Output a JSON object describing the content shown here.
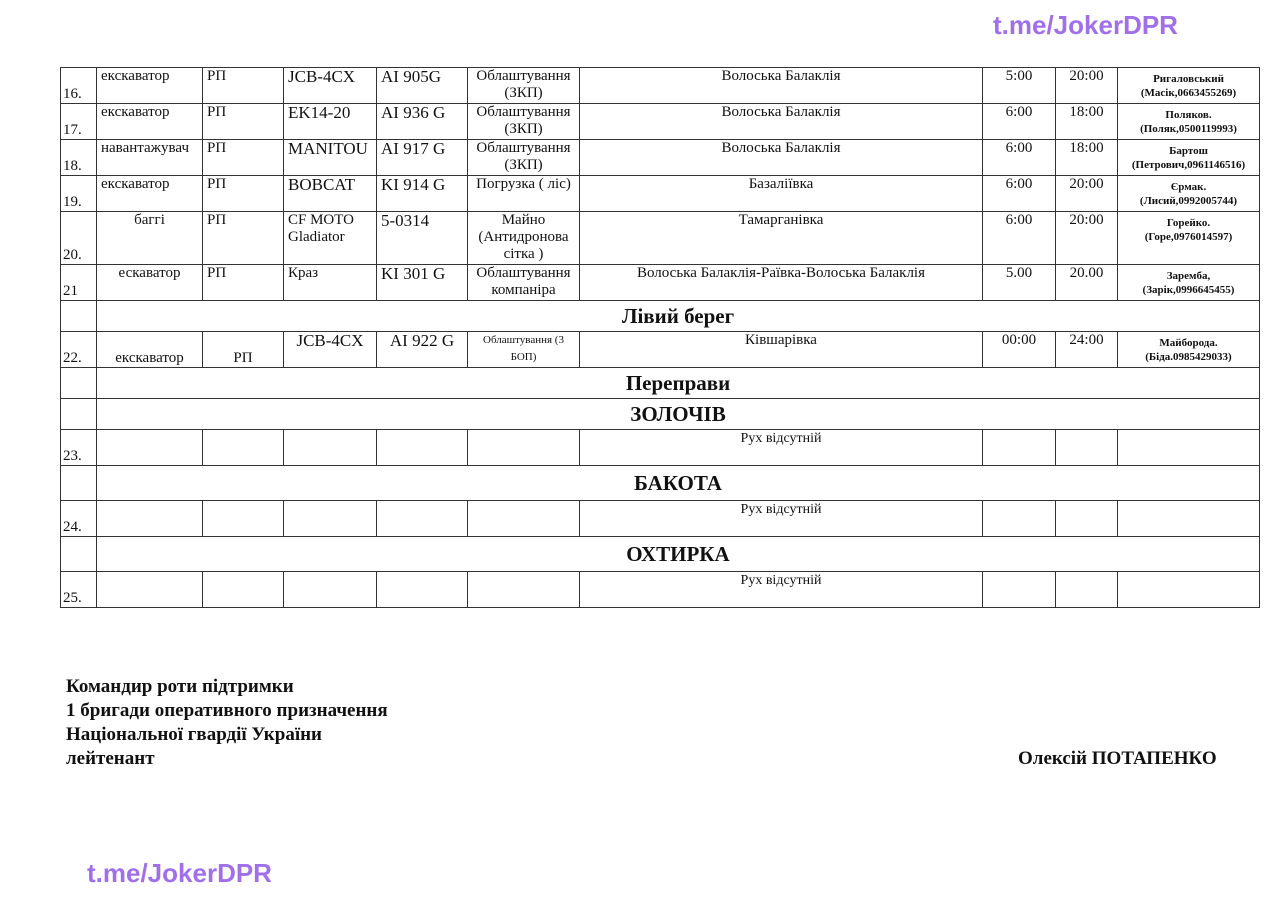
{
  "watermark": "t.me/JokerDPR",
  "rows": [
    {
      "n": "16.",
      "type": "екскаватор",
      "unit": "РП",
      "model": "JCB-4CX",
      "plate": "AI 905G",
      "task": "Облаштування (ЗКП)",
      "route": "Волоська Балаклія",
      "from": "5:00",
      "to": "20:00",
      "contact": "Ригаловський (Масік,0663455269)"
    },
    {
      "n": "17.",
      "type": "екскаватор",
      "unit": "РП",
      "model": "EK14-20",
      "plate": "AI 936 G",
      "task": "Облаштування (ЗКП)",
      "route": "Волоська Балаклія",
      "from": "6:00",
      "to": "18:00",
      "contact": "Поляков. (Поляк,0500119993)"
    },
    {
      "n": "18.",
      "type": "навантажувач",
      "unit": "РП",
      "model": "MANITOU",
      "plate": "AI 917 G",
      "task": "Облаштування (ЗКП)",
      "route": "Волоська Балаклія",
      "from": "6:00",
      "to": "18:00",
      "contact": "Бартош (Петрович,0961146516)"
    },
    {
      "n": "19.",
      "type": "екскаватор",
      "unit": "РП",
      "model": "BOBCAT",
      "plate": "KI 914 G",
      "task": "Погрузка ( ліс)",
      "route": "Базаліївка",
      "from": "6:00",
      "to": "20:00",
      "contact": "Єрмак. (Лисий,0992005744)"
    },
    {
      "n": "20.",
      "type": "баггі",
      "unit": "РП",
      "model": "CF MOTO Gladiator",
      "plate": "5-0314",
      "task": "Майно (Антидронова сітка )",
      "route": "Тамарганівка",
      "from": "6:00",
      "to": "20:00",
      "contact": "Горейко. (Горе,0976014597)"
    },
    {
      "n": "21",
      "type": "ескаватор",
      "unit": "РП",
      "model": "Краз",
      "plate": "KI 301 G",
      "task": "Облаштування компаніра",
      "route": "Волоська Балаклія-Раївка-Волоська Балаклія",
      "from": "5.00",
      "to": "20.00",
      "contact": "Заремба, (Зарік,0996645455)"
    }
  ],
  "left_bank": {
    "title": "Лівий берег",
    "row": {
      "n": "22.",
      "type": "екскаватор",
      "unit": "РП",
      "model": "JCB-4CX",
      "plate": "AI 922 G",
      "task": "Облаштування (3 БОП)",
      "route": "Ківшарівка",
      "from": "00:00",
      "to": "24:00",
      "contact": "Майборода. (Біда.0985429033)"
    }
  },
  "crossings": {
    "title": "Переправи",
    "sections": [
      {
        "title": "ЗОЛОЧІВ",
        "n": "23.",
        "route": "Рух відсутній"
      },
      {
        "title": "БАКОТА",
        "n": "24.",
        "route": "Рух відсутній"
      },
      {
        "title": "ОХТИРКА",
        "n": "25.",
        "route": "Рух відсутній"
      }
    ]
  },
  "signature": {
    "lines": [
      "Командир роти підтримки",
      "1 бригади оперативного призначення",
      "Національної гвардії України",
      "лейтенант"
    ],
    "name": "Олексій ПОТАПЕНКО"
  }
}
